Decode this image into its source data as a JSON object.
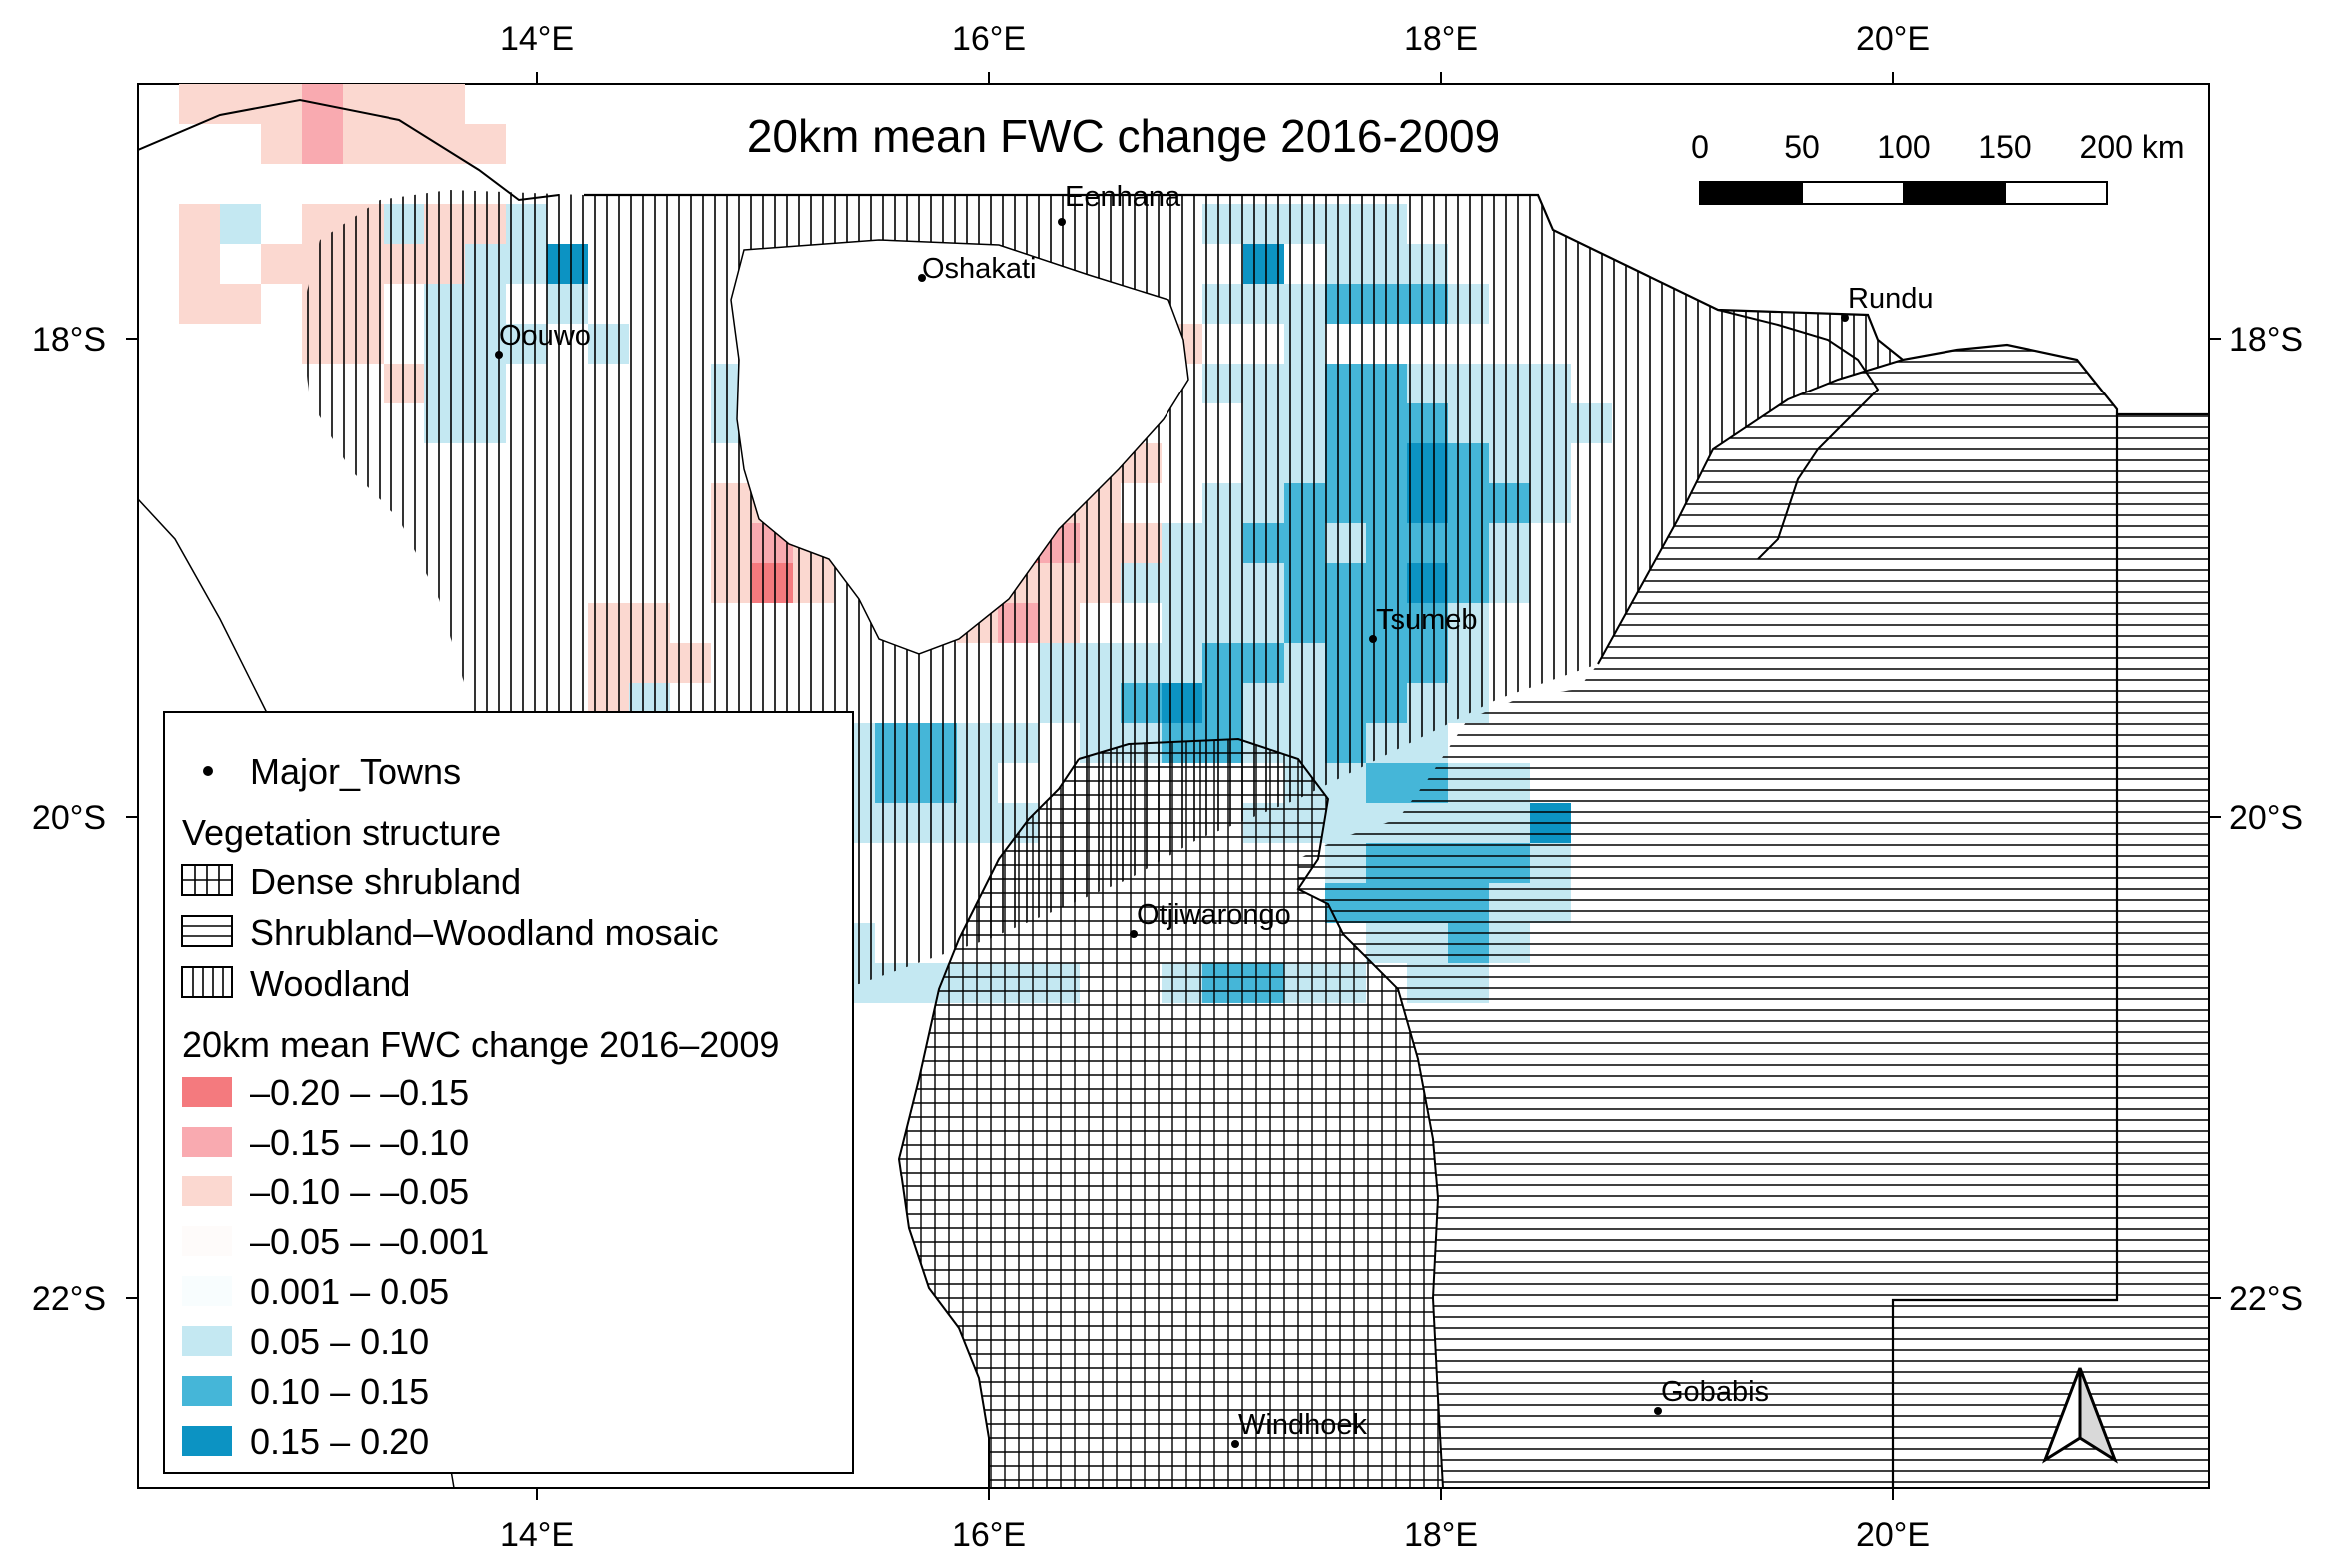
{
  "map": {
    "title": "20km mean FWC change 2016-2009",
    "lon_ticks": [
      "14°E",
      "16°E",
      "18°E",
      "20°E"
    ],
    "lat_ticks": [
      "18°S",
      "20°S",
      "22°S"
    ],
    "towns": [
      "Oouwo",
      "Eenhana",
      "Oshakati",
      "Rundu",
      "Tsumeb",
      "Otjiwarongo",
      "Windhoek",
      "Gobabis"
    ],
    "scale_bar": {
      "labels": [
        "0",
        "50",
        "100",
        "150",
        "200 km"
      ]
    },
    "north_arrow": "north-arrow"
  },
  "legend": {
    "towns_label": "Major_Towns",
    "veg_heading": "Vegetation structure",
    "veg_items": [
      "Dense shrubland",
      "Shrubland–Woodland mosaic",
      "Woodland"
    ],
    "fwc_heading": "20km mean FWC change 2016–2009",
    "fwc_items": [
      {
        "label": "–0.20 – –0.15",
        "color": "#f47a7e"
      },
      {
        "label": "–0.15 – –0.10",
        "color": "#f9aab0"
      },
      {
        "label": "–0.10 – –0.05",
        "color": "#fbd8d0"
      },
      {
        "label": "–0.05 – –0.001",
        "color": "#fefbfa"
      },
      {
        "label": "0.001 – 0.05",
        "color": "#f8fdfe"
      },
      {
        "label": "0.05 – 0.10",
        "color": "#c4e8f2"
      },
      {
        "label": "0.10 – 0.15",
        "color": "#45b6d8"
      },
      {
        "label": "0.15 – 0.20",
        "color": "#0c93c3"
      }
    ]
  }
}
